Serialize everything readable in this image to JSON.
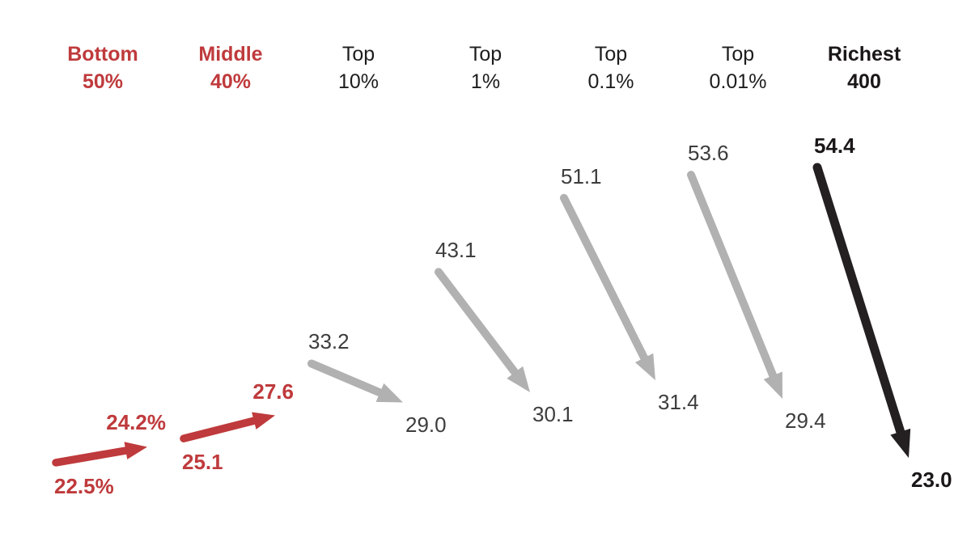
{
  "chart_data": {
    "type": "slope-arrows",
    "title": "",
    "unit": "percent",
    "ylim": [
      20,
      56
    ],
    "grid": false,
    "legend": false,
    "background": "#ffffff",
    "groups": [
      {
        "id": "bottom-50",
        "label_line1": "Bottom",
        "label_line2": "50%",
        "start": 22.5,
        "end": 24.2,
        "start_label": "22.5%",
        "end_label": "24.2%",
        "color": "red",
        "direction": "up"
      },
      {
        "id": "middle-40",
        "label_line1": "Middle",
        "label_line2": "40%",
        "start": 25.1,
        "end": 27.6,
        "start_label": "25.1",
        "end_label": "27.6",
        "color": "red",
        "direction": "up"
      },
      {
        "id": "top-10",
        "label_line1": "Top",
        "label_line2": "10%",
        "start": 33.2,
        "end": 29.0,
        "start_label": "33.2",
        "end_label": "29.0",
        "color": "gray",
        "direction": "down"
      },
      {
        "id": "top-1",
        "label_line1": "Top",
        "label_line2": "1%",
        "start": 43.1,
        "end": 30.1,
        "start_label": "43.1",
        "end_label": "30.1",
        "color": "gray",
        "direction": "down"
      },
      {
        "id": "top-0-1",
        "label_line1": "Top",
        "label_line2": "0.1%",
        "start": 51.1,
        "end": 31.4,
        "start_label": "51.1",
        "end_label": "31.4",
        "color": "gray",
        "direction": "down"
      },
      {
        "id": "top-0-01",
        "label_line1": "Top",
        "label_line2": "0.01%",
        "start": 53.6,
        "end": 29.4,
        "start_label": "53.6",
        "end_label": "29.4",
        "color": "gray",
        "direction": "down"
      },
      {
        "id": "richest-400",
        "label_line1": "Richest",
        "label_line2": "400",
        "start": 54.4,
        "end": 23.0,
        "start_label": "54.4",
        "end_label": "23.0",
        "color": "black",
        "direction": "down"
      }
    ],
    "colors": {
      "red": "#bf3a3c",
      "gray_arrow": "#b1b1b1",
      "black_arrow": "#241f20",
      "value_gray_text": "#3d3d3d",
      "value_black_text": "#1b1718",
      "header_plain_text": "#1d1d1d"
    }
  }
}
